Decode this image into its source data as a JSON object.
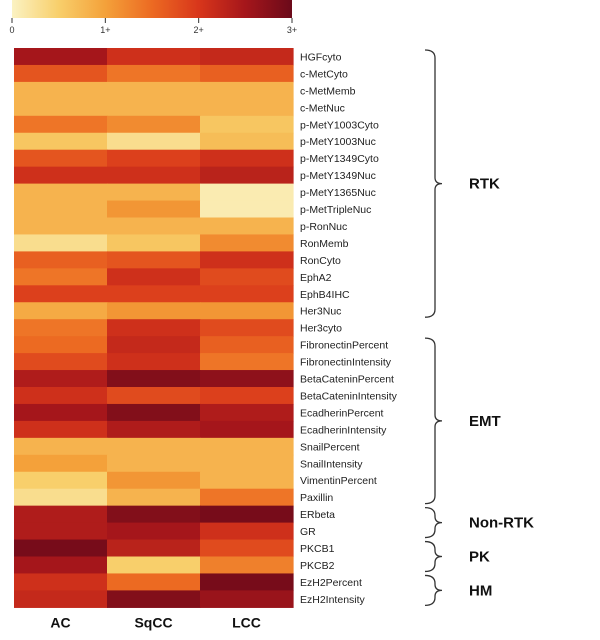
{
  "chart_data": {
    "type": "heatmap",
    "title": "",
    "columns": [
      "AC",
      "SqCC",
      "LCC"
    ],
    "colorbar": {
      "min": 0,
      "max": 3,
      "tick_values": [
        0,
        1,
        2,
        3
      ],
      "tick_labels": [
        "0",
        "1+",
        "2+",
        "3+"
      ],
      "colors": [
        "#fbf2c2",
        "#f8cf6b",
        "#f4a13a",
        "#ec6a22",
        "#d8361b",
        "#a5161b",
        "#6b0a1a"
      ]
    },
    "rows": [
      {
        "label": "HGFcyto",
        "values": [
          2.5,
          2.1,
          2.2
        ]
      },
      {
        "label": "c-MetCyto",
        "values": [
          1.7,
          1.4,
          1.6
        ]
      },
      {
        "label": "c-MetMemb",
        "values": [
          0.8,
          0.8,
          0.8
        ]
      },
      {
        "label": "c-MetNuc",
        "values": [
          0.8,
          0.8,
          0.8
        ]
      },
      {
        "label": "p-MetY1003Cyto",
        "values": [
          1.4,
          1.2,
          0.6
        ]
      },
      {
        "label": "p-MetY1003Nuc",
        "values": [
          0.6,
          0.3,
          0.7
        ]
      },
      {
        "label": "p-MetY1349Cyto",
        "values": [
          1.7,
          1.9,
          2.1
        ]
      },
      {
        "label": "p-MetY1349Nuc",
        "values": [
          2.1,
          2.1,
          2.3
        ]
      },
      {
        "label": "p-MetY1365Nuc",
        "values": [
          0.8,
          0.8,
          0.1
        ]
      },
      {
        "label": "p-MetTripleNuc",
        "values": [
          0.8,
          1.1,
          0.1
        ]
      },
      {
        "label": "p-RonNuc",
        "values": [
          0.8,
          0.8,
          0.8
        ]
      },
      {
        "label": "RonMemb",
        "values": [
          0.3,
          0.6,
          1.2
        ]
      },
      {
        "label": "RonCyto",
        "values": [
          1.6,
          1.7,
          2.1
        ]
      },
      {
        "label": "EphA2",
        "values": [
          1.4,
          2.1,
          1.8
        ]
      },
      {
        "label": "EphB4IHC",
        "values": [
          1.9,
          1.9,
          1.9
        ]
      },
      {
        "label": "Her3Nuc",
        "values": [
          0.9,
          1.1,
          1.1
        ]
      },
      {
        "label": "Her3cyto",
        "values": [
          1.4,
          2.1,
          1.8
        ]
      },
      {
        "label": "FibronectinPercent",
        "values": [
          1.5,
          2.2,
          1.6
        ]
      },
      {
        "label": "FibronectinIntensity",
        "values": [
          1.8,
          2.1,
          1.4
        ]
      },
      {
        "label": "BetaCateninPercent",
        "values": [
          2.4,
          2.8,
          2.7
        ]
      },
      {
        "label": "BetaCateninIntensity",
        "values": [
          2.1,
          1.8,
          1.9
        ]
      },
      {
        "label": "EcadherinPercent",
        "values": [
          2.5,
          2.8,
          2.4
        ]
      },
      {
        "label": "EcadherinIntensity",
        "values": [
          2.1,
          2.4,
          2.5
        ]
      },
      {
        "label": "SnailPercent",
        "values": [
          0.8,
          0.8,
          0.8
        ]
      },
      {
        "label": "SnailIntensity",
        "values": [
          1.0,
          0.8,
          0.8
        ]
      },
      {
        "label": "VimentinPercent",
        "values": [
          0.5,
          1.1,
          0.8
        ]
      },
      {
        "label": "Paxillin",
        "values": [
          0.3,
          0.8,
          1.4
        ]
      },
      {
        "label": "ERbeta",
        "values": [
          2.4,
          2.8,
          2.9
        ]
      },
      {
        "label": "GR",
        "values": [
          2.4,
          2.5,
          2.1
        ]
      },
      {
        "label": "PKCB1",
        "values": [
          2.9,
          2.3,
          1.8
        ]
      },
      {
        "label": "PKCB2",
        "values": [
          2.5,
          0.5,
          1.3
        ]
      },
      {
        "label": "EzH2Percent",
        "values": [
          2.1,
          1.5,
          2.9
        ]
      },
      {
        "label": "EzH2Intensity",
        "values": [
          2.2,
          2.8,
          2.6
        ]
      }
    ],
    "groups": [
      {
        "label": "RTK",
        "from": 0,
        "to": 15
      },
      {
        "label": "EMT",
        "from": 17,
        "to": 26
      },
      {
        "label": "Non-RTK",
        "from": 27,
        "to": 28
      },
      {
        "label": "PK",
        "from": 29,
        "to": 30
      },
      {
        "label": "HM",
        "from": 31,
        "to": 32
      }
    ]
  }
}
